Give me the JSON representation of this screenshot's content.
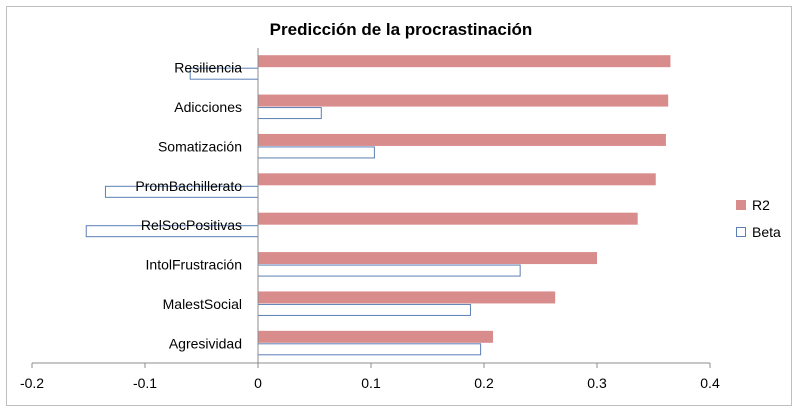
{
  "chart_data": {
    "type": "bar",
    "orientation": "horizontal",
    "title": "Predicción de la procrastinación",
    "categories": [
      "Resiliencia",
      "Adicciones",
      "Somatización",
      "PromBachillerato",
      "RelSocPositivas",
      "IntolFrustración",
      "MalestSocial",
      "Agresividad"
    ],
    "series": [
      {
        "name": "R2",
        "values": [
          0.365,
          0.363,
          0.361,
          0.352,
          0.336,
          0.3,
          0.263,
          0.208
        ],
        "color": "#d98c8c",
        "style": "filled"
      },
      {
        "name": "Beta",
        "values": [
          -0.06,
          0.056,
          0.103,
          -0.135,
          -0.152,
          0.232,
          0.188,
          0.197
        ],
        "color": "#5b7fb4",
        "style": "outline"
      }
    ],
    "xlim": [
      -0.2,
      0.4
    ],
    "xticks": [
      "-0.2",
      "-0.1",
      "0",
      "0.1",
      "0.2",
      "0.3",
      "0.4"
    ],
    "xlabel": "",
    "ylabel": "",
    "legend_position": "right",
    "grid": false
  }
}
